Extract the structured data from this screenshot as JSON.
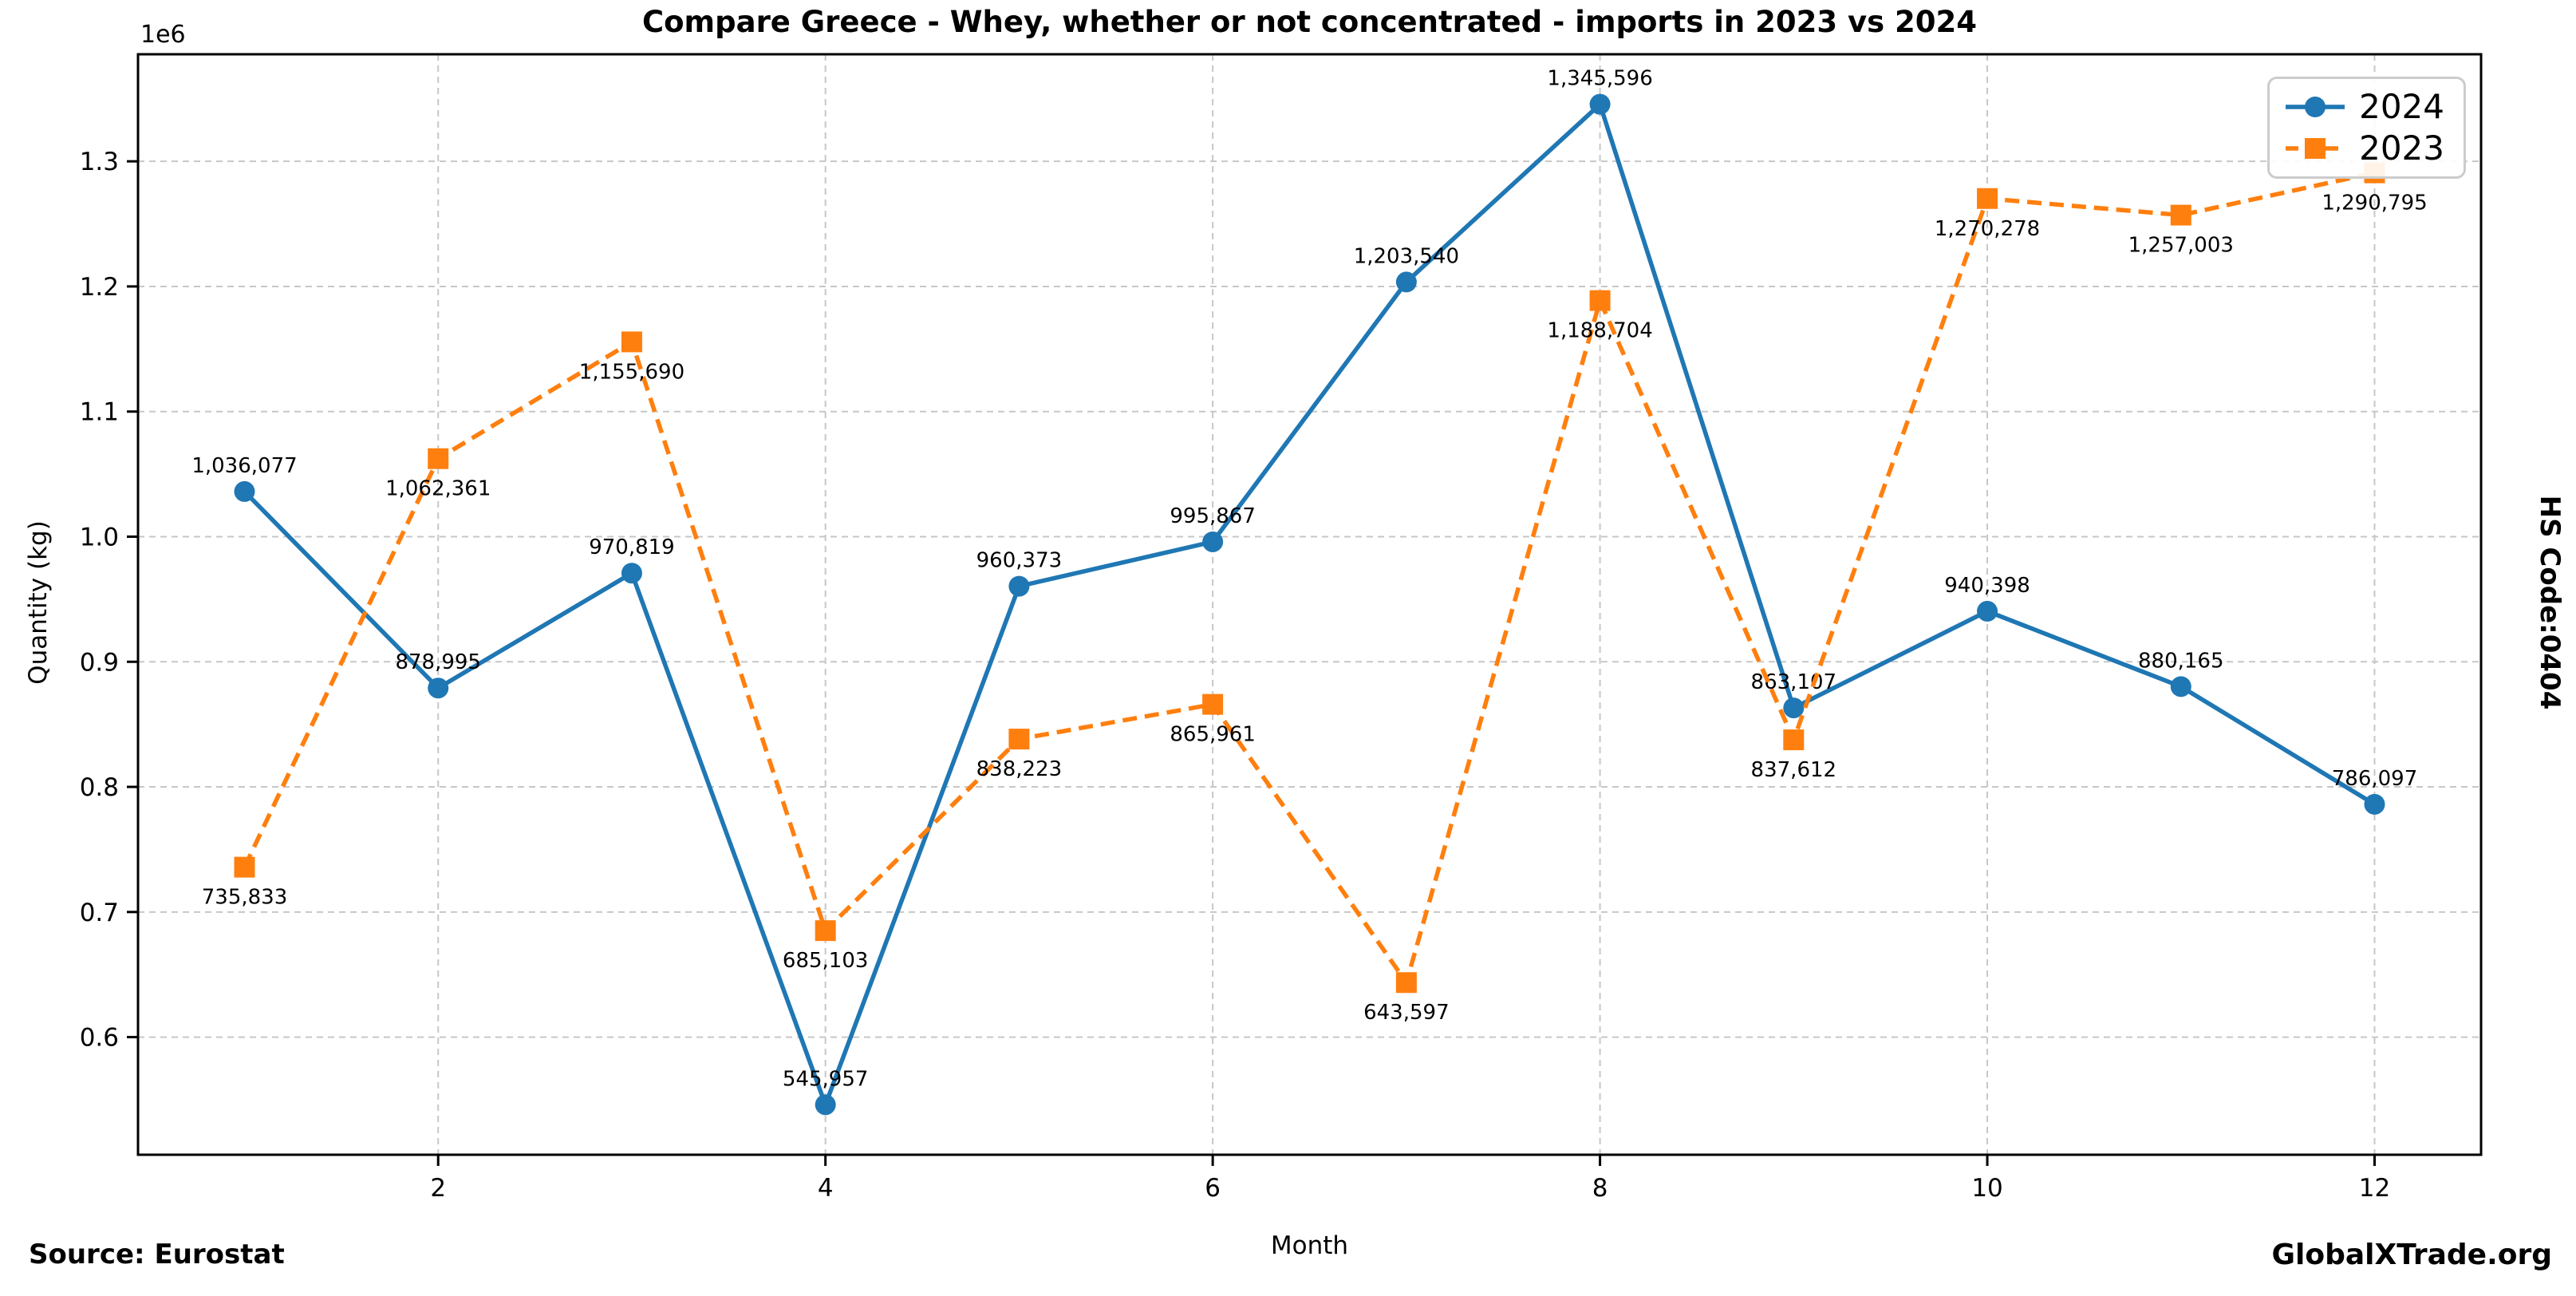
{
  "title": "Compare Greece - Whey, whether or not concentrated - imports in 2023 vs 2024",
  "footer": {
    "source": "Source: Eurostat",
    "brand": "GlobalXTrade.org"
  },
  "side_label": "HS Code:0404",
  "chart_data": {
    "type": "line",
    "title": "Compare Greece - Whey, whether or not concentrated - imports in 2023 vs 2024",
    "xlabel": "Month",
    "ylabel": "Quantity (kg)",
    "y_offset_label": "1e6",
    "x": [
      1,
      2,
      3,
      4,
      5,
      6,
      7,
      8,
      9,
      10,
      11,
      12
    ],
    "x_ticks": [
      2,
      4,
      6,
      8,
      10,
      12
    ],
    "y_ticks": [
      600000,
      700000,
      800000,
      900000,
      1000000,
      1100000,
      1200000,
      1300000
    ],
    "xlim": [
      0.45,
      12.55
    ],
    "ylim": [
      505975,
      1385578
    ],
    "grid": true,
    "grid_style": "dashed",
    "legend_position": "upper right",
    "series": [
      {
        "name": "2024",
        "color": "#1f77b4",
        "line_style": "solid",
        "marker": "circle",
        "label_position": "above",
        "values": [
          1036077,
          878995,
          970819,
          545957,
          960373,
          995867,
          1203540,
          1345596,
          863107,
          940398,
          880165,
          786097
        ]
      },
      {
        "name": "2023",
        "color": "#ff7f0e",
        "line_style": "dashed",
        "marker": "square",
        "label_position": "below",
        "values": [
          735833,
          1062361,
          1155690,
          685103,
          838223,
          865961,
          643597,
          1188704,
          837612,
          1270278,
          1257003,
          1290795
        ]
      }
    ]
  }
}
